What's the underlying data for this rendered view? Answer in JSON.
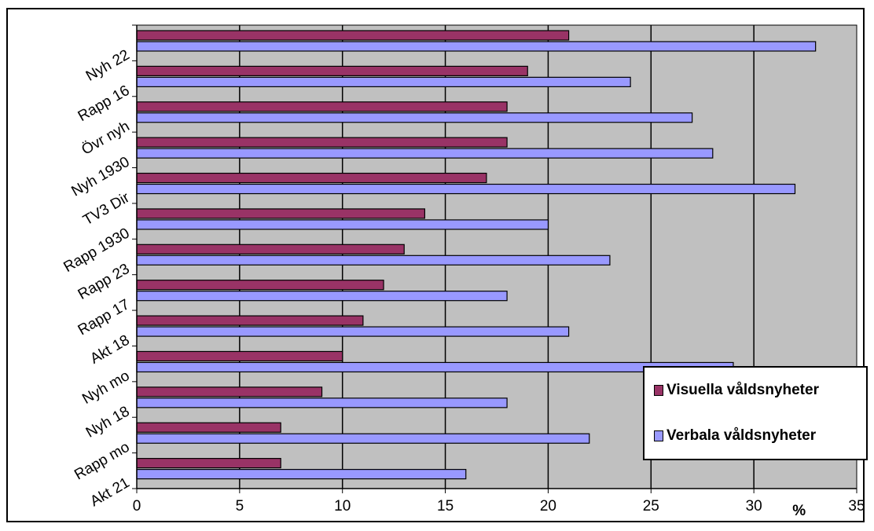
{
  "chart_data": {
    "type": "bar",
    "orientation": "horizontal",
    "categories": [
      "Nyh 22",
      "Rapp 16",
      "Övr nyh",
      "Nyh 1930",
      "TV3 Dir",
      "Rapp 1930",
      "Rapp 23",
      "Rapp 17",
      "Akt 18",
      "Nyh mo",
      "Nyh 18",
      "Rapp mo",
      "Akt 21"
    ],
    "series": [
      {
        "name": "Visuella våldsnyheter",
        "color": "#993366",
        "values": [
          21,
          19,
          18,
          18,
          17,
          14,
          13,
          12,
          11,
          10,
          9,
          7,
          7
        ]
      },
      {
        "name": "Verbala våldsnyheter",
        "color": "#9999ff",
        "values": [
          33,
          24,
          27,
          28,
          32,
          20,
          23,
          18,
          21,
          29,
          18,
          22,
          16
        ]
      }
    ],
    "x_ticks": [
      "0",
      "5",
      "10",
      "15",
      "20",
      "25",
      "30",
      "35"
    ],
    "xlim": [
      0,
      35
    ],
    "xlabel": "%",
    "ylabel": "",
    "title": "",
    "grid": true,
    "plot_background": "#c0c0c0",
    "legend_position": "bottom-right"
  }
}
